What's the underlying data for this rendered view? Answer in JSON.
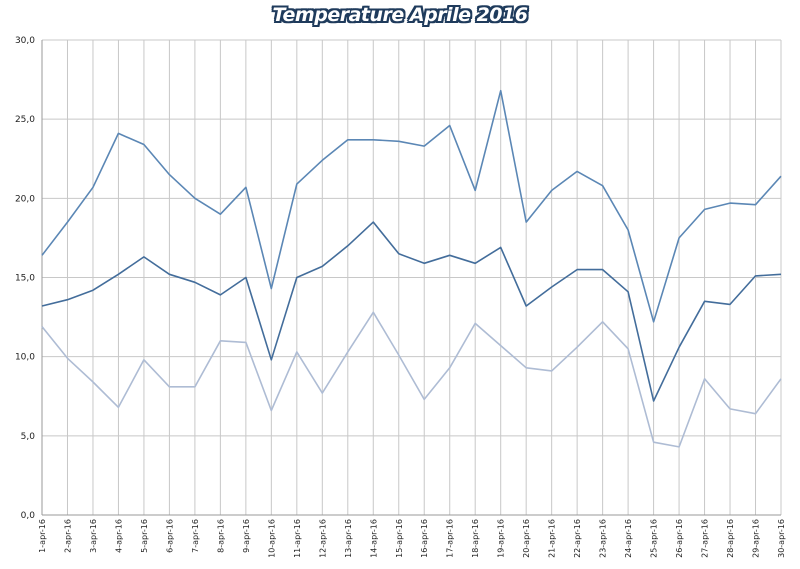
{
  "chart_data": {
    "type": "line",
    "title": "Temperature Aprile 2016",
    "xlabel": "",
    "ylabel": "",
    "ylim": [
      0,
      30
    ],
    "yticks": [
      "0,0",
      "5,0",
      "10,0",
      "15,0",
      "20,0",
      "25,0",
      "30,0"
    ],
    "grid": true,
    "legend": "none",
    "categories": [
      "1-apr-16",
      "2-apr-16",
      "3-apr-16",
      "4-apr-16",
      "5-apr-16",
      "6-apr-16",
      "7-apr-16",
      "8-apr-16",
      "9-apr-16",
      "10-apr-16",
      "11-apr-16",
      "12-apr-16",
      "13-apr-16",
      "14-apr-16",
      "15-apr-16",
      "16-apr-16",
      "17-apr-16",
      "18-apr-16",
      "19-apr-16",
      "20-apr-16",
      "21-apr-16",
      "22-apr-16",
      "23-apr-16",
      "24-apr-16",
      "25-apr-16",
      "26-apr-16",
      "27-apr-16",
      "28-apr-16",
      "29-apr-16",
      "30-apr-16"
    ],
    "series": [
      {
        "color": "#5b87b5",
        "values": [
          16.4,
          18.5,
          20.7,
          24.1,
          23.4,
          21.5,
          20.0,
          19.0,
          20.7,
          14.3,
          20.9,
          22.4,
          23.7,
          23.7,
          23.6,
          23.3,
          24.6,
          20.5,
          26.8,
          18.5,
          20.5,
          21.7,
          20.8,
          18.0,
          12.2,
          17.5,
          19.3,
          19.7,
          19.6,
          21.4
        ]
      },
      {
        "color": "#436d9b",
        "values": [
          13.2,
          13.6,
          14.2,
          15.2,
          16.3,
          15.2,
          14.7,
          13.9,
          15.0,
          9.8,
          15.0,
          15.7,
          17.0,
          18.5,
          16.5,
          15.9,
          16.4,
          15.9,
          16.9,
          13.2,
          14.4,
          15.5,
          15.5,
          14.1,
          7.2,
          10.6,
          13.5,
          13.3,
          15.1,
          15.2
        ]
      },
      {
        "color": "#aebcd4",
        "values": [
          11.9,
          9.9,
          8.4,
          6.8,
          9.8,
          8.1,
          8.1,
          11.0,
          10.9,
          6.6,
          10.3,
          7.7,
          10.3,
          12.8,
          10.1,
          7.3,
          9.3,
          12.1,
          10.7,
          9.3,
          9.1,
          10.6,
          12.2,
          10.5,
          4.6,
          4.3,
          8.6,
          6.7,
          6.4,
          8.6
        ]
      }
    ]
  }
}
